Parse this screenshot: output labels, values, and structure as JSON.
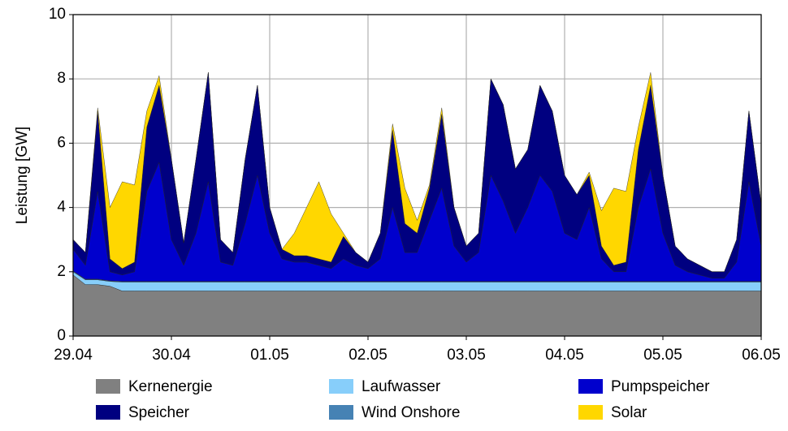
{
  "chart_data": {
    "type": "stacked_area",
    "y_label": "Leistung [GW]",
    "x": [
      0,
      0.125,
      0.25,
      0.375,
      0.5,
      0.625,
      0.75,
      0.875,
      1,
      1.125,
      1.25,
      1.375,
      1.5,
      1.625,
      1.75,
      1.875,
      2,
      2.125,
      2.25,
      2.375,
      2.5,
      2.625,
      2.75,
      2.875,
      3,
      3.125,
      3.25,
      3.375,
      3.5,
      3.625,
      3.75,
      3.875,
      4,
      4.125,
      4.25,
      4.375,
      4.5,
      4.625,
      4.75,
      4.875,
      5,
      5.125,
      5.25,
      5.375,
      5.5,
      5.625,
      5.75,
      5.875,
      6,
      6.125,
      6.25,
      6.375,
      6.5,
      6.625,
      6.75,
      6.875,
      7
    ],
    "xlim": [
      0,
      7
    ],
    "xticks": [
      {
        "value": 0,
        "label": "29.04"
      },
      {
        "value": 1,
        "label": "30.04"
      },
      {
        "value": 2,
        "label": "01.05"
      },
      {
        "value": 3,
        "label": "02.05"
      },
      {
        "value": 4,
        "label": "03.05"
      },
      {
        "value": 5,
        "label": "04.05"
      },
      {
        "value": 6,
        "label": "05.05"
      },
      {
        "value": 7,
        "label": "06.05"
      }
    ],
    "ylim": [
      0,
      10
    ],
    "yticks": [
      0,
      2,
      4,
      6,
      8,
      10
    ],
    "grid": true,
    "series": [
      {
        "name": "Kernenergie",
        "color": "#808080",
        "values": [
          1.9,
          1.6,
          1.6,
          1.55,
          1.4,
          1.4,
          1.4,
          1.4,
          1.4,
          1.4,
          1.4,
          1.4,
          1.4,
          1.4,
          1.4,
          1.4,
          1.4,
          1.4,
          1.4,
          1.4,
          1.4,
          1.4,
          1.4,
          1.4,
          1.4,
          1.4,
          1.4,
          1.4,
          1.4,
          1.4,
          1.4,
          1.4,
          1.4,
          1.4,
          1.4,
          1.4,
          1.4,
          1.4,
          1.4,
          1.4,
          1.4,
          1.4,
          1.4,
          1.4,
          1.4,
          1.4,
          1.4,
          1.4,
          1.4,
          1.4,
          1.4,
          1.4,
          1.4,
          1.4,
          1.4,
          1.4,
          1.4
        ]
      },
      {
        "name": "Laufwasser",
        "color": "#87cefa",
        "values": [
          0.1,
          0.15,
          0.15,
          0.15,
          0.28,
          0.28,
          0.28,
          0.28,
          0.28,
          0.28,
          0.28,
          0.28,
          0.28,
          0.28,
          0.28,
          0.28,
          0.28,
          0.28,
          0.28,
          0.28,
          0.28,
          0.28,
          0.28,
          0.28,
          0.28,
          0.28,
          0.28,
          0.28,
          0.28,
          0.28,
          0.28,
          0.28,
          0.28,
          0.28,
          0.28,
          0.28,
          0.28,
          0.28,
          0.28,
          0.28,
          0.28,
          0.28,
          0.28,
          0.28,
          0.28,
          0.28,
          0.28,
          0.28,
          0.28,
          0.28,
          0.28,
          0.28,
          0.28,
          0.28,
          0.28,
          0.28,
          0.28
        ]
      },
      {
        "name": "Wind Onshore",
        "color": "#4682b4",
        "values": [
          0.02,
          0.02,
          0.02,
          0.02,
          0.02,
          0.02,
          0.02,
          0.02,
          0.02,
          0.02,
          0.02,
          0.02,
          0.02,
          0.02,
          0.02,
          0.02,
          0.02,
          0.02,
          0.02,
          0.02,
          0.02,
          0.02,
          0.02,
          0.02,
          0.02,
          0.02,
          0.02,
          0.02,
          0.02,
          0.02,
          0.02,
          0.02,
          0.02,
          0.02,
          0.02,
          0.02,
          0.02,
          0.02,
          0.02,
          0.02,
          0.02,
          0.02,
          0.02,
          0.02,
          0.02,
          0.02,
          0.02,
          0.02,
          0.02,
          0.02,
          0.02,
          0.02,
          0.02,
          0.02,
          0.02,
          0.02,
          0.02
        ]
      },
      {
        "name": "Pumpspeicher",
        "color": "#0000cd",
        "values": [
          0.68,
          0.43,
          2.73,
          0.28,
          0.2,
          0.3,
          2.8,
          3.7,
          1.3,
          0.5,
          1.5,
          3.1,
          0.6,
          0.5,
          1.8,
          3.3,
          1.5,
          0.7,
          0.6,
          0.6,
          0.5,
          0.4,
          0.7,
          0.5,
          0.4,
          0.7,
          2.3,
          0.9,
          0.9,
          1.9,
          2.9,
          1.1,
          0.6,
          0.9,
          3.3,
          2.5,
          1.5,
          2.3,
          3.3,
          2.8,
          1.5,
          1.3,
          2.3,
          0.7,
          0.3,
          0.3,
          2.3,
          3.5,
          1.5,
          0.5,
          0.3,
          0.2,
          0.1,
          0.1,
          0.6,
          3.1,
          1.1
        ]
      },
      {
        "name": "Speicher",
        "color": "#000080",
        "values": [
          0.3,
          0.4,
          2.5,
          0.4,
          0.2,
          0.3,
          2.0,
          2.4,
          2.5,
          0.7,
          2.3,
          3.4,
          0.7,
          0.4,
          2.0,
          2.8,
          0.8,
          0.3,
          0.2,
          0.2,
          0.2,
          0.2,
          0.7,
          0.4,
          0.2,
          0.8,
          2.4,
          0.9,
          0.6,
          1.0,
          2.3,
          1.2,
          0.5,
          0.6,
          3.0,
          3.0,
          2.0,
          1.8,
          2.8,
          2.5,
          1.8,
          1.4,
          1.0,
          0.4,
          0.2,
          0.3,
          1.8,
          2.6,
          1.8,
          0.6,
          0.4,
          0.3,
          0.2,
          0.2,
          0.7,
          2.2,
          1.3
        ]
      },
      {
        "name": "Solar",
        "color": "#ffd700",
        "values": [
          0,
          0,
          0.1,
          1.6,
          2.7,
          2.4,
          0.5,
          0.3,
          0,
          0,
          0,
          0,
          0,
          0,
          0,
          0,
          0,
          0,
          0.7,
          1.5,
          2.4,
          1.5,
          0.1,
          0,
          0,
          0,
          0.2,
          1.1,
          0.4,
          0.1,
          0.2,
          0,
          0,
          0,
          0,
          0,
          0,
          0,
          0,
          0,
          0,
          0,
          0.1,
          1.1,
          2.4,
          2.2,
          0.7,
          0.4,
          0,
          0,
          0,
          0,
          0,
          0,
          0,
          0,
          0
        ]
      }
    ]
  }
}
